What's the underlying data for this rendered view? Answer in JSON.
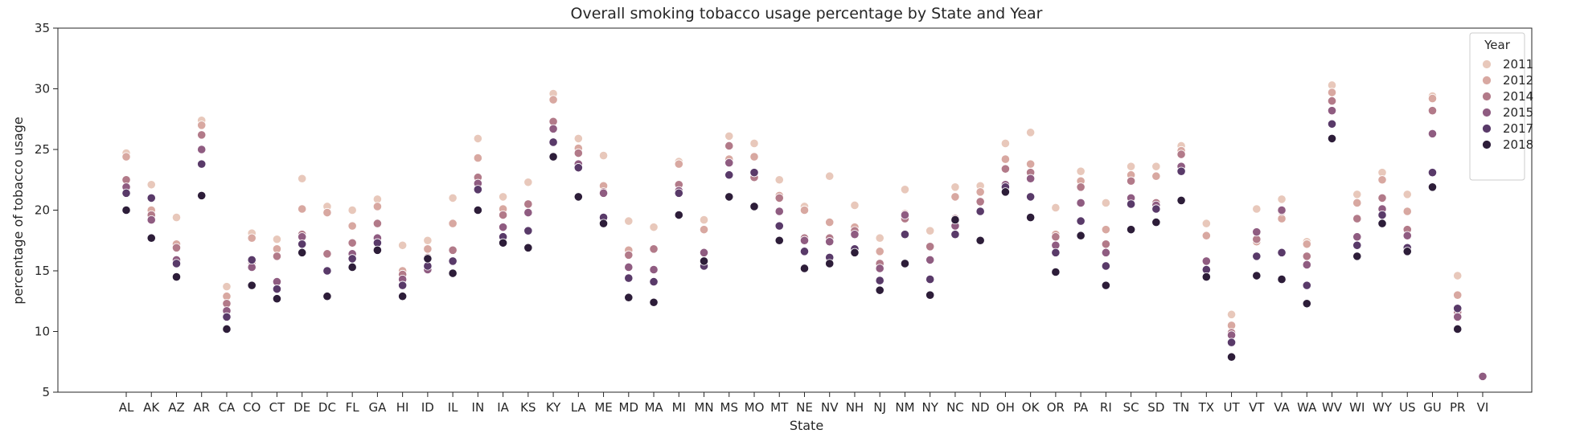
{
  "chart_data": {
    "type": "scatter",
    "title": "Overall smoking tobacco usage percentage by State and Year",
    "xlabel": "State",
    "ylabel": "percentage of tobacco usage",
    "ylim": [
      5,
      35
    ],
    "yticks": [
      5,
      10,
      15,
      20,
      25,
      30,
      35
    ],
    "grid": false,
    "legend": {
      "title": "Year",
      "placement": "top-right"
    },
    "categories": [
      "AL",
      "AK",
      "AZ",
      "AR",
      "CA",
      "CO",
      "CT",
      "DE",
      "DC",
      "FL",
      "GA",
      "HI",
      "ID",
      "IL",
      "IN",
      "IA",
      "KS",
      "KY",
      "LA",
      "ME",
      "MD",
      "MA",
      "MI",
      "MN",
      "MS",
      "MO",
      "MT",
      "NE",
      "NV",
      "NH",
      "NJ",
      "NM",
      "NY",
      "NC",
      "ND",
      "OH",
      "OK",
      "OR",
      "PA",
      "RI",
      "SC",
      "SD",
      "TN",
      "TX",
      "UT",
      "VT",
      "VA",
      "WA",
      "WV",
      "WI",
      "WY",
      "US",
      "GU",
      "PR",
      "VI"
    ],
    "series": [
      {
        "name": "2011",
        "color": "#e8c8bb",
        "values": [
          24.7,
          22.1,
          19.4,
          27.4,
          13.7,
          18.1,
          17.6,
          22.6,
          20.3,
          20.0,
          20.9,
          17.1,
          17.5,
          21.0,
          25.9,
          21.1,
          22.3,
          29.6,
          25.9,
          24.5,
          19.1,
          18.6,
          24.0,
          19.2,
          26.1,
          25.5,
          22.5,
          20.3,
          22.8,
          20.4,
          17.7,
          21.7,
          18.3,
          21.9,
          22.0,
          25.5,
          26.4,
          20.2,
          23.2,
          20.6,
          23.6,
          23.6,
          25.3,
          18.9,
          11.4,
          20.1,
          20.9,
          17.4,
          30.3,
          21.3,
          23.1,
          21.3,
          29.4,
          14.6,
          null
        ]
      },
      {
        "name": "2012",
        "color": "#d8a8a1",
        "values": [
          24.4,
          20.0,
          17.2,
          27.0,
          12.9,
          17.7,
          16.8,
          20.1,
          19.8,
          18.7,
          20.3,
          15.0,
          16.8,
          18.9,
          24.3,
          20.1,
          19.8,
          29.1,
          25.1,
          22.0,
          16.7,
          16.8,
          23.8,
          18.4,
          24.2,
          24.4,
          21.2,
          20.0,
          19.0,
          18.6,
          16.6,
          19.7,
          17.0,
          21.1,
          21.5,
          24.2,
          23.8,
          18.0,
          22.4,
          18.4,
          22.9,
          22.8,
          24.9,
          17.9,
          10.5,
          17.4,
          19.3,
          17.2,
          29.7,
          20.6,
          22.5,
          19.9,
          29.2,
          13.0,
          null
        ]
      },
      {
        "name": "2014",
        "color": "#b27a89",
        "values": [
          22.5,
          19.6,
          16.9,
          26.2,
          12.3,
          15.7,
          16.2,
          18.0,
          16.4,
          17.3,
          18.9,
          14.7,
          16.1,
          16.7,
          22.7,
          19.6,
          20.5,
          27.3,
          24.7,
          21.5,
          16.3,
          16.8,
          22.1,
          16.5,
          25.3,
          22.7,
          21.0,
          17.7,
          17.7,
          18.3,
          15.6,
          19.3,
          17.0,
          19.3,
          20.7,
          23.4,
          23.1,
          17.8,
          21.9,
          17.2,
          22.4,
          20.6,
          24.6,
          15.8,
          9.9,
          17.6,
          19.9,
          16.2,
          29.0,
          19.3,
          21.0,
          18.4,
          28.2,
          11.6,
          null
        ]
      },
      {
        "name": "2015",
        "color": "#8f5c81",
        "values": [
          21.9,
          19.2,
          15.9,
          25.0,
          11.7,
          15.3,
          14.1,
          17.8,
          15.0,
          16.4,
          17.7,
          14.3,
          15.1,
          15.8,
          22.2,
          18.6,
          19.8,
          26.7,
          23.8,
          21.4,
          15.3,
          15.1,
          21.6,
          16.5,
          23.9,
          23.1,
          19.9,
          17.5,
          17.4,
          18.0,
          15.2,
          19.6,
          15.9,
          18.7,
          19.9,
          22.1,
          22.6,
          17.1,
          20.6,
          16.5,
          21.0,
          20.4,
          23.6,
          15.8,
          9.7,
          18.2,
          20.0,
          15.5,
          28.2,
          17.8,
          20.1,
          17.9,
          26.3,
          11.2,
          6.3
        ]
      },
      {
        "name": "2017",
        "color": "#593a69",
        "values": [
          21.4,
          21.0,
          15.6,
          23.8,
          11.2,
          15.9,
          13.5,
          17.2,
          15.0,
          16.0,
          17.3,
          13.8,
          15.4,
          15.8,
          21.7,
          17.8,
          18.3,
          25.6,
          23.5,
          19.4,
          14.4,
          14.1,
          21.4,
          15.4,
          22.9,
          23.1,
          18.7,
          16.6,
          16.1,
          16.8,
          14.2,
          18.0,
          14.3,
          18.0,
          19.9,
          21.9,
          21.1,
          16.5,
          19.1,
          15.4,
          20.5,
          20.1,
          23.2,
          15.1,
          9.1,
          16.2,
          16.5,
          13.8,
          27.1,
          17.1,
          19.6,
          16.9,
          23.1,
          11.9,
          null
        ]
      },
      {
        "name": "2018",
        "color": "#2d1d39",
        "values": [
          20.0,
          17.7,
          14.5,
          21.2,
          10.2,
          13.8,
          12.7,
          16.5,
          12.9,
          15.3,
          16.7,
          12.9,
          16.0,
          14.8,
          20.0,
          17.3,
          16.9,
          24.4,
          21.1,
          18.9,
          12.8,
          12.4,
          19.6,
          15.8,
          21.1,
          20.3,
          17.5,
          15.2,
          15.6,
          16.5,
          13.4,
          15.6,
          13.0,
          19.2,
          17.5,
          21.5,
          19.4,
          14.9,
          17.9,
          13.8,
          18.4,
          19.0,
          20.8,
          14.5,
          7.9,
          14.6,
          14.3,
          12.3,
          25.9,
          16.2,
          18.9,
          16.6,
          21.9,
          10.2,
          null
        ]
      }
    ]
  }
}
